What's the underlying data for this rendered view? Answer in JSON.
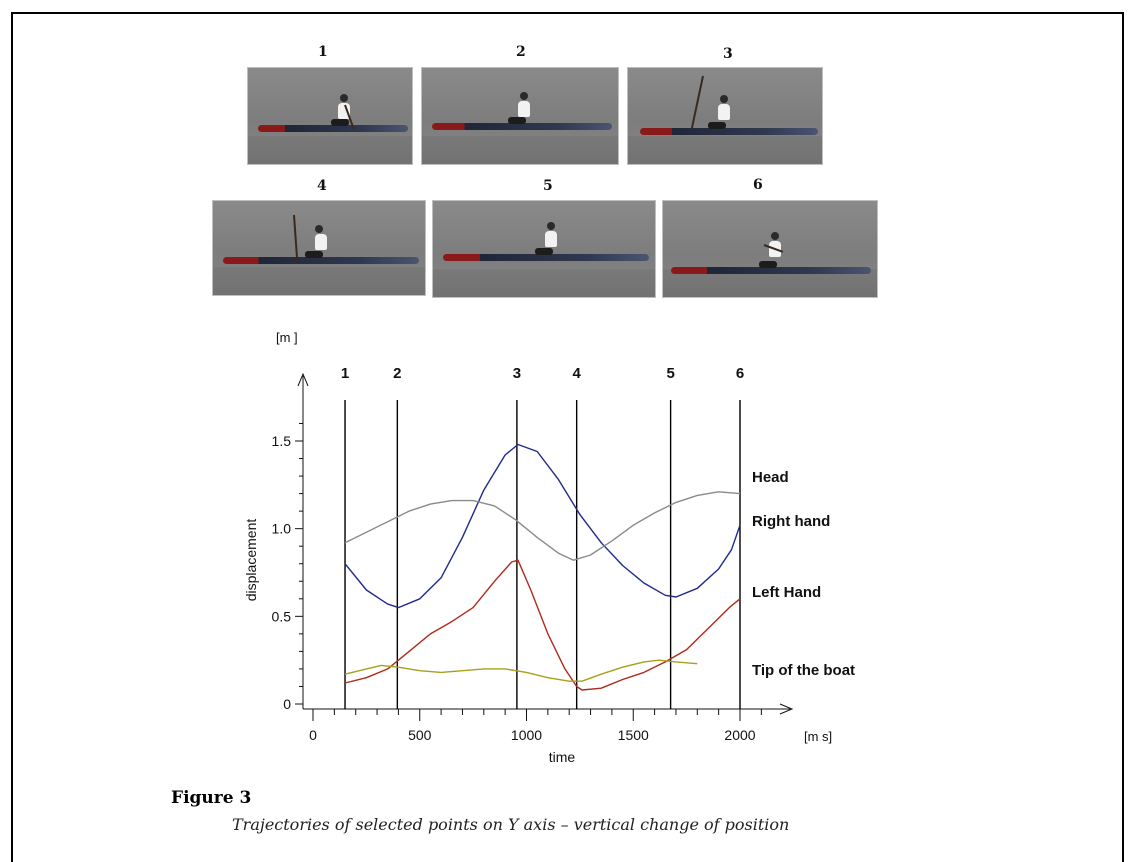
{
  "photos": [
    {
      "number": "1"
    },
    {
      "number": "2"
    },
    {
      "number": "3"
    },
    {
      "number": "4"
    },
    {
      "number": "5"
    },
    {
      "number": "6"
    }
  ],
  "chart_data": {
    "type": "line",
    "xlabel": "time",
    "ylabel": "displacement",
    "x_unit": "[m s]",
    "y_unit": "[m ]",
    "xlim": [
      0,
      2150
    ],
    "ylim": [
      0,
      1.75
    ],
    "x_ticks": [
      0,
      500,
      1000,
      1500,
      2000
    ],
    "y_ticks": [
      0,
      0.5,
      1.0,
      1.5
    ],
    "x_tick_labels": [
      "0",
      "500",
      "1000",
      "1500",
      "2000"
    ],
    "y_tick_labels": [
      "0",
      "0.5",
      "1.0",
      "1.5"
    ],
    "grid": false,
    "phase_markers": [
      {
        "label": "1",
        "x": 150
      },
      {
        "label": "2",
        "x": 395
      },
      {
        "label": "3",
        "x": 955
      },
      {
        "label": "4",
        "x": 1235
      },
      {
        "label": "5",
        "x": 1675
      },
      {
        "label": "6",
        "x": 2000
      }
    ],
    "series": [
      {
        "name": "Head",
        "color": "#1f2a8c",
        "x": [
          150,
          250,
          350,
          400,
          500,
          600,
          700,
          800,
          900,
          960,
          1050,
          1150,
          1250,
          1350,
          1450,
          1550,
          1650,
          1700,
          1800,
          1900,
          1960,
          2000
        ],
        "y": [
          0.8,
          0.65,
          0.57,
          0.55,
          0.6,
          0.72,
          0.95,
          1.22,
          1.42,
          1.48,
          1.44,
          1.28,
          1.08,
          0.92,
          0.79,
          0.69,
          0.62,
          0.61,
          0.66,
          0.77,
          0.88,
          1.02
        ]
      },
      {
        "name": "Right hand",
        "color": "#8a8a8a",
        "x": [
          150,
          250,
          350,
          450,
          550,
          650,
          750,
          850,
          950,
          1050,
          1150,
          1220,
          1300,
          1400,
          1500,
          1600,
          1700,
          1800,
          1900,
          2000
        ],
        "y": [
          0.92,
          0.98,
          1.04,
          1.1,
          1.14,
          1.16,
          1.16,
          1.13,
          1.05,
          0.95,
          0.86,
          0.82,
          0.85,
          0.93,
          1.02,
          1.09,
          1.15,
          1.19,
          1.21,
          1.2
        ]
      },
      {
        "name": "Left Hand",
        "color": "#b02a1a",
        "x": [
          150,
          250,
          350,
          400,
          450,
          550,
          650,
          750,
          850,
          930,
          960,
          1020,
          1100,
          1180,
          1235,
          1260,
          1350,
          1450,
          1550,
          1650,
          1750,
          1850,
          1950,
          2000
        ],
        "y": [
          0.12,
          0.15,
          0.2,
          0.25,
          0.3,
          0.4,
          0.47,
          0.55,
          0.7,
          0.81,
          0.82,
          0.65,
          0.4,
          0.2,
          0.1,
          0.08,
          0.09,
          0.14,
          0.18,
          0.24,
          0.31,
          0.43,
          0.55,
          0.6
        ]
      },
      {
        "name": "Tip of the boat",
        "color": "#a8a01c",
        "x": [
          150,
          250,
          320,
          400,
          500,
          600,
          700,
          800,
          900,
          1000,
          1100,
          1200,
          1260,
          1350,
          1450,
          1550,
          1620,
          1700,
          1800
        ],
        "y": [
          0.17,
          0.2,
          0.22,
          0.21,
          0.19,
          0.18,
          0.19,
          0.2,
          0.2,
          0.18,
          0.15,
          0.13,
          0.13,
          0.17,
          0.21,
          0.24,
          0.25,
          0.24,
          0.23
        ]
      }
    ],
    "annotations": [
      "Head",
      "Right hand",
      "Left Hand",
      "Tip of the boat"
    ]
  },
  "caption": {
    "title": "Figure 3",
    "text": "Trajectories of selected points on Y axis – vertical change of position"
  }
}
